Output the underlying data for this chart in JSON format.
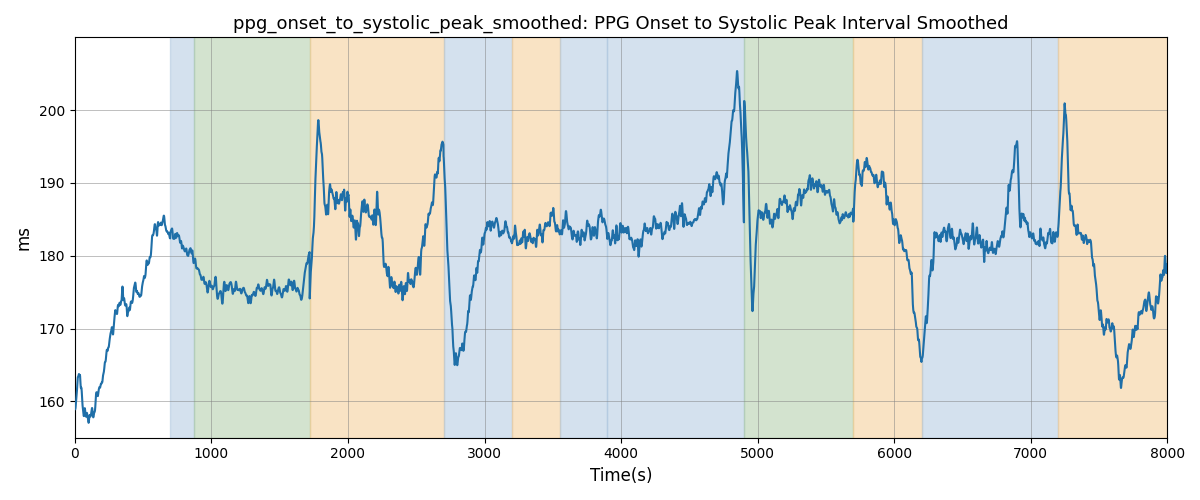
{
  "title": "ppg_onset_to_systolic_peak_smoothed: PPG Onset to Systolic Peak Interval Smoothed",
  "xlabel": "Time(s)",
  "ylabel": "ms",
  "xlim": [
    0,
    8000
  ],
  "ylim": [
    155,
    210
  ],
  "yticks": [
    160,
    170,
    180,
    190,
    200
  ],
  "xticks": [
    0,
    1000,
    2000,
    3000,
    4000,
    5000,
    6000,
    7000,
    8000
  ],
  "line_color": "#1f6fa8",
  "line_width": 1.5,
  "title_fontsize": 13,
  "bands": [
    {
      "xmin": 700,
      "xmax": 870,
      "color": "#aac4de",
      "alpha": 0.5
    },
    {
      "xmin": 870,
      "xmax": 1720,
      "color": "#a8c8a0",
      "alpha": 0.5
    },
    {
      "xmin": 1720,
      "xmax": 2700,
      "color": "#f5c98a",
      "alpha": 0.5
    },
    {
      "xmin": 2700,
      "xmax": 3200,
      "color": "#aac4de",
      "alpha": 0.5
    },
    {
      "xmin": 3200,
      "xmax": 3550,
      "color": "#f5c98a",
      "alpha": 0.5
    },
    {
      "xmin": 3550,
      "xmax": 3900,
      "color": "#aac4de",
      "alpha": 0.5
    },
    {
      "xmin": 3900,
      "xmax": 4900,
      "color": "#aac4de",
      "alpha": 0.5
    },
    {
      "xmin": 4900,
      "xmax": 5700,
      "color": "#a8c8a0",
      "alpha": 0.5
    },
    {
      "xmin": 5700,
      "xmax": 6200,
      "color": "#f5c98a",
      "alpha": 0.5
    },
    {
      "xmin": 6200,
      "xmax": 7200,
      "color": "#aac4de",
      "alpha": 0.5
    },
    {
      "xmin": 7200,
      "xmax": 8100,
      "color": "#f5c98a",
      "alpha": 0.5
    }
  ]
}
